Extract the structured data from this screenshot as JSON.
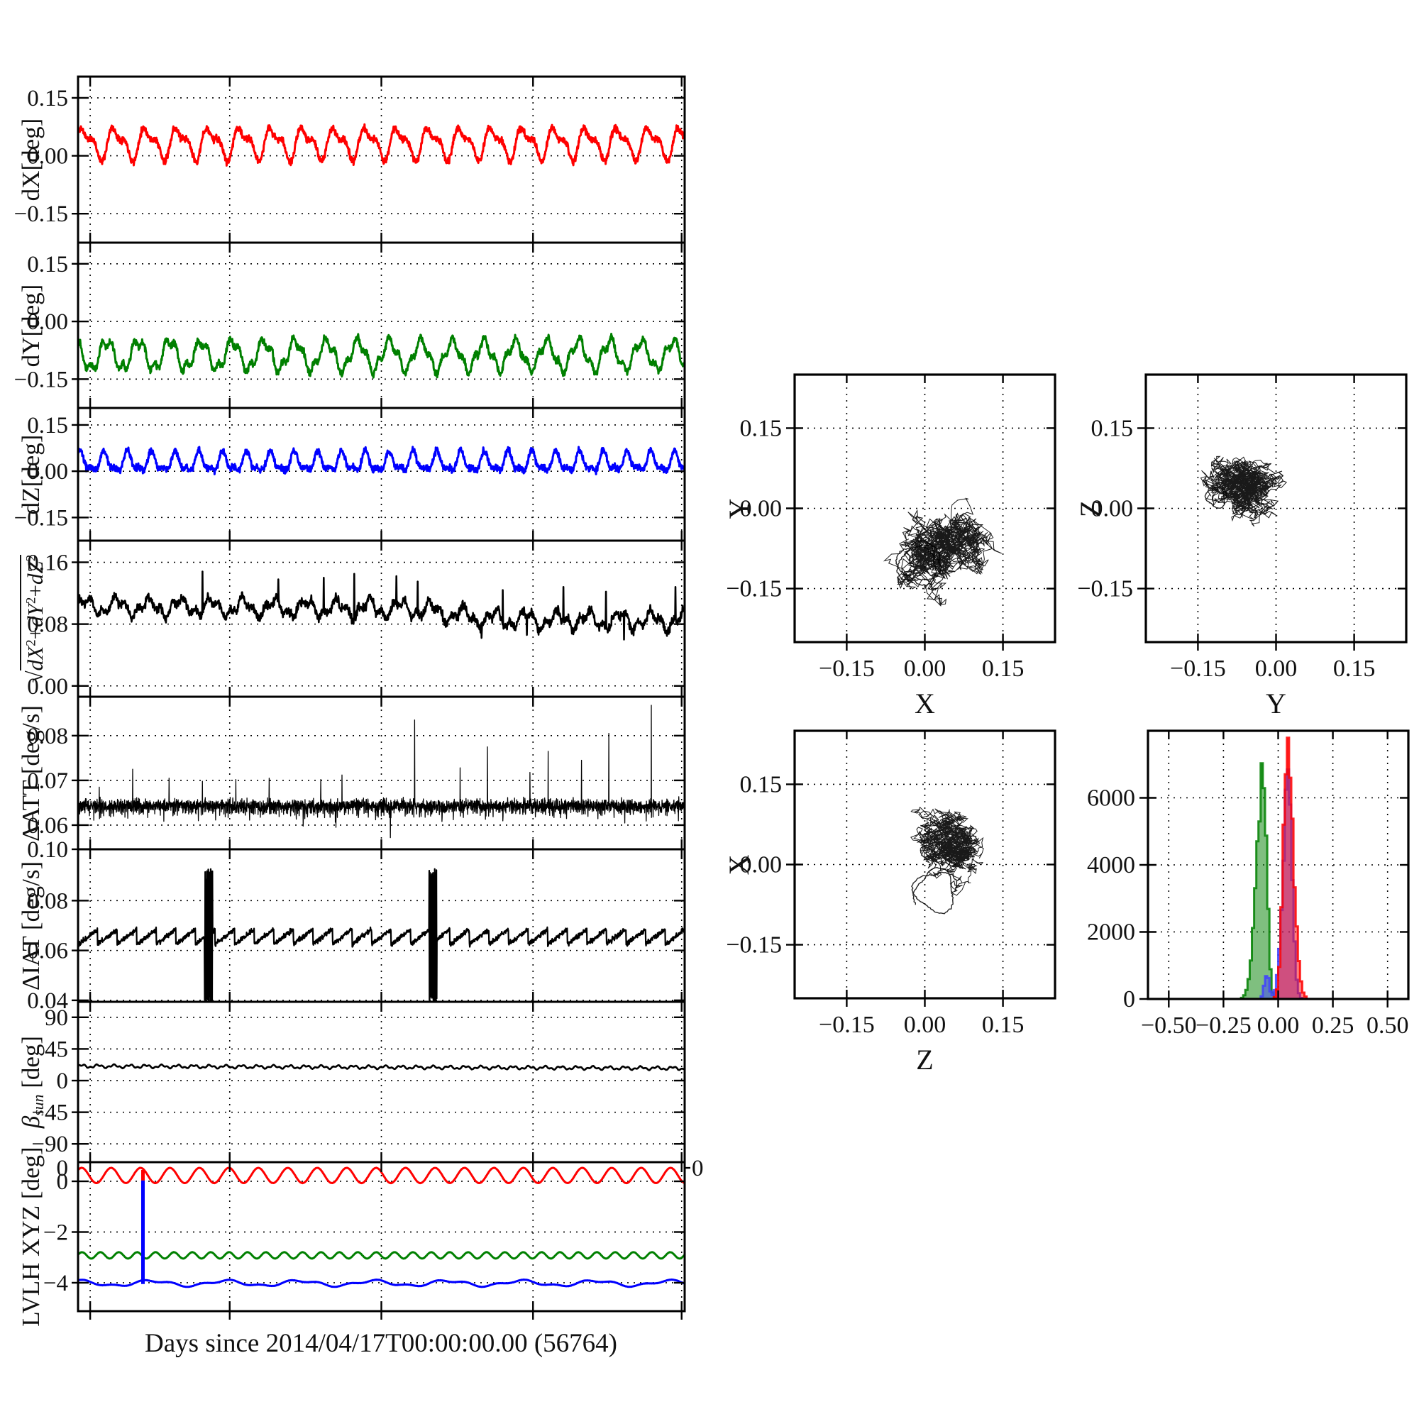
{
  "figure": {
    "background": "#ffffff",
    "frame_color": "#000000",
    "x_axis": {
      "label": "Days since 2014/04/17T00:00:00.00 (56764)",
      "range_days": [
        0,
        20.4
      ],
      "gridline_days": [
        0,
        5,
        10,
        15,
        20
      ]
    }
  },
  "colors": {
    "red": "#ff0000",
    "green": "#008000",
    "blue": "#0000ff",
    "black": "#000000",
    "hist_red": "#ff0000",
    "hist_green": "#008000",
    "hist_blue": "#4040ff"
  },
  "chart_data": [
    {
      "id": "dX",
      "type": "line",
      "ylabel": "dX[deg]",
      "ylabel_runs": [
        {
          "t": "dX[deg]"
        }
      ],
      "yticks": [
        {
          "label": "0.15",
          "value": 0.15
        },
        {
          "label": "0.00",
          "value": 0.0
        },
        {
          "label": "−0.15",
          "value": -0.15
        }
      ],
      "ylim": [
        -0.225,
        0.205
      ],
      "grid": true,
      "series": [
        {
          "name": "dX",
          "color": "#ff0000",
          "gen": "osc",
          "mean": 0.033,
          "amp": 0.034,
          "cycles": 19.3,
          "amp2": 0.017,
          "cycles2": 38.6,
          "phase": 0.3,
          "phase2": 1.2,
          "noise": 0.0075,
          "seed": 11,
          "width": 3
        }
      ]
    },
    {
      "id": "dY",
      "type": "line",
      "ylabel": "dY[deg]",
      "ylabel_runs": [
        {
          "t": "dY[deg]"
        }
      ],
      "yticks": [
        {
          "label": "0.15",
          "value": 0.15
        },
        {
          "label": "0.00",
          "value": 0.0
        },
        {
          "label": "−0.15",
          "value": -0.15
        }
      ],
      "ylim": [
        -0.225,
        0.205
      ],
      "grid": true,
      "series": [
        {
          "name": "dY",
          "color": "#008000",
          "gen": "osc",
          "mean": -0.088,
          "amp": 0.036,
          "cycles": 19.3,
          "amp2": 0.013,
          "cycles2": 57,
          "phase": 2.1,
          "phase2": 0.4,
          "noise": 0.0075,
          "seed": 22,
          "width": 3
        }
      ]
    },
    {
      "id": "dZ",
      "type": "line",
      "ylabel": "dZ[deg]",
      "ylabel_runs": [
        {
          "t": "dZ[deg]"
        }
      ],
      "yticks": [
        {
          "label": "0.15",
          "value": 0.15
        },
        {
          "label": "0.00",
          "value": 0.0
        },
        {
          "label": "−0.15",
          "value": -0.15
        }
      ],
      "ylim": [
        -0.225,
        0.205
      ],
      "grid": true,
      "series": [
        {
          "name": "dZ",
          "color": "#0000ff",
          "gen": "osc",
          "mean": 0.027,
          "amp": 0.028,
          "cycles": 25.5,
          "amp2": 0.013,
          "cycles2": 51,
          "phase": 1.0,
          "phase2": 0.7,
          "noise": 0.009,
          "seed": 33,
          "width": 3
        }
      ]
    },
    {
      "id": "rss",
      "type": "line",
      "ylabel": "sqrt(dX^2+dY^2+dZ^2)",
      "ylabel_runs": [
        {
          "t": "√"
        },
        {
          "t": "dX",
          "i": true,
          "ov": true
        },
        {
          "t": "2",
          "sup": true,
          "ov": true
        },
        {
          "t": "+",
          "ov": true
        },
        {
          "t": "dY",
          "i": true,
          "ov": true
        },
        {
          "t": "2",
          "sup": true,
          "ov": true
        },
        {
          "t": "+",
          "ov": true
        },
        {
          "t": "dZ",
          "i": true,
          "ov": true
        },
        {
          "t": "2",
          "sup": true,
          "ov": true
        }
      ],
      "yticks": [
        {
          "label": "0.16",
          "value": 0.16
        },
        {
          "label": "0.08",
          "value": 0.08
        },
        {
          "label": "0.00",
          "value": 0.0
        }
      ],
      "ylim": [
        -0.014,
        0.188
      ],
      "grid": true,
      "series": [
        {
          "name": "rss",
          "color": "#000000",
          "gen": "trend",
          "trend": [
            [
              0,
              0.103
            ],
            [
              0.55,
              0.1
            ],
            [
              0.68,
              0.086
            ],
            [
              1,
              0.084
            ]
          ],
          "amp": 0.009,
          "cycles": 19.3,
          "noise": 0.005,
          "width": 2.6,
          "seed": 44,
          "spikes": [
            {
              "f": 0.205,
              "v": 0.148
            },
            {
              "f": 0.33,
              "v": 0.138
            },
            {
              "f": 0.405,
              "v": 0.14
            },
            {
              "f": 0.455,
              "v": 0.145
            },
            {
              "f": 0.525,
              "v": 0.142
            },
            {
              "f": 0.56,
              "v": 0.135
            },
            {
              "f": 0.7,
              "v": 0.124
            },
            {
              "f": 0.8,
              "v": 0.128
            },
            {
              "f": 0.87,
              "v": 0.122
            },
            {
              "f": 0.985,
              "v": 0.128
            }
          ],
          "dips": [
            {
              "f": 0.665,
              "v": 0.062
            },
            {
              "f": 0.74,
              "v": 0.066
            },
            {
              "f": 0.9,
              "v": 0.06
            }
          ]
        }
      ]
    },
    {
      "id": "dATT",
      "type": "line",
      "ylabel": "ΔATT [deg/s]",
      "ylabel_runs": [
        {
          "t": "ΔATT [deg/s]"
        }
      ],
      "yticks": [
        {
          "label": "0.08",
          "value": 0.08
        },
        {
          "label": "0.07",
          "value": 0.07
        },
        {
          "label": "0.06",
          "value": 0.06
        }
      ],
      "ylim": [
        0.0546,
        0.0887
      ],
      "grid": true,
      "series": [
        {
          "name": "dATT",
          "color": "#000000",
          "gen": "flat_spikes",
          "mean": 0.0645,
          "noise": 0.0011,
          "n": 3000,
          "width": 1.3,
          "seed": 55,
          "spikes": [
            {
              "f": 0.035,
              "v": 0.0685
            },
            {
              "f": 0.09,
              "v": 0.0725
            },
            {
              "f": 0.15,
              "v": 0.0705
            },
            {
              "f": 0.205,
              "v": 0.0698
            },
            {
              "f": 0.26,
              "v": 0.0702
            },
            {
              "f": 0.315,
              "v": 0.0705
            },
            {
              "f": 0.4,
              "v": 0.0702
            },
            {
              "f": 0.435,
              "v": 0.0712
            },
            {
              "f": 0.555,
              "v": 0.0835
            },
            {
              "f": 0.63,
              "v": 0.0728
            },
            {
              "f": 0.675,
              "v": 0.0775
            },
            {
              "f": 0.745,
              "v": 0.0718
            },
            {
              "f": 0.775,
              "v": 0.0765
            },
            {
              "f": 0.83,
              "v": 0.0745
            },
            {
              "f": 0.875,
              "v": 0.0805
            },
            {
              "f": 0.945,
              "v": 0.0868
            }
          ],
          "dips": [
            {
              "f": 0.425,
              "v": 0.0595
            },
            {
              "f": 0.515,
              "v": 0.0572
            },
            {
              "f": 0.6,
              "v": 0.0608
            }
          ]
        }
      ]
    },
    {
      "id": "dIAT",
      "type": "line",
      "ylabel": "ΔIAT [deg/s]",
      "ylabel_runs": [
        {
          "t": "ΔIAT [deg/s]"
        }
      ],
      "yticks": [
        {
          "label": "0.10",
          "value": 0.1006
        },
        {
          "label": "0.08",
          "value": 0.08
        },
        {
          "label": "0.06",
          "value": 0.06
        },
        {
          "label": "0.04",
          "value": 0.04
        }
      ],
      "ylim": [
        0.0394,
        0.1006
      ],
      "grid": true,
      "series": [
        {
          "name": "dIAT",
          "color": "#000000",
          "gen": "saw_burst",
          "lo": 0.0625,
          "hi": 0.0685,
          "teeth": 31,
          "noise": 0.0008,
          "width": 2.2,
          "seed": 66,
          "bursts": [
            {
              "f": 0.215,
              "w": 0.013,
              "lo": 0.0405,
              "hi": 0.0905
            },
            {
              "f": 0.585,
              "w": 0.013,
              "lo": 0.0405,
              "hi": 0.0905
            }
          ]
        }
      ]
    },
    {
      "id": "beta_sun",
      "type": "line",
      "ylabel": "beta_sun [deg]",
      "ylabel_runs": [
        {
          "t": "β",
          "i": true
        },
        {
          "t": "sun",
          "sub": true
        },
        {
          "t": " [deg]"
        }
      ],
      "yticks": [
        {
          "label": "90",
          "value": 90
        },
        {
          "label": "45",
          "value": 45
        },
        {
          "label": "0",
          "value": 0
        },
        {
          "label": "−45",
          "value": -45
        },
        {
          "label": "−90",
          "value": -90
        }
      ],
      "ylim": [
        -116,
        112
      ],
      "grid": true,
      "series": [
        {
          "name": "beta",
          "color": "#000000",
          "gen": "trend",
          "trend": [
            [
              0,
              20.5
            ],
            [
              1,
              17.5
            ]
          ],
          "amp": 1.8,
          "cycles": 38,
          "noise": 0.18,
          "width": 2.6,
          "seed": 77,
          "spikes": [],
          "dips": []
        }
      ]
    },
    {
      "id": "lvlh",
      "type": "line",
      "ylabel": "LVLH XYZ [deg]",
      "ylabel_runs": [
        {
          "t": "LVLH XYZ [deg]"
        }
      ],
      "yticks": [
        {
          "label": "0",
          "value": 0
        },
        {
          "label": "−2",
          "value": -2
        },
        {
          "label": "−4",
          "value": -4
        }
      ],
      "ylim": [
        -5.12,
        0.755
      ],
      "grid": true,
      "twin_zero": {
        "label_left": "0",
        "label_right": "0",
        "value": 0.53
      },
      "series": [
        {
          "name": "X",
          "color": "#ff0000",
          "gen": "osc",
          "mean": 0.23,
          "amp": 0.3,
          "cycles": 20.6,
          "amp2": 0,
          "cycles2": 1,
          "phase": 0.8,
          "phase2": 0,
          "noise": 0.004,
          "seed": 88,
          "width": 3
        },
        {
          "name": "Y",
          "color": "#008000",
          "gen": "osc",
          "mean": -2.92,
          "amp": 0.125,
          "cycles": 33,
          "amp2": 0,
          "cycles2": 1,
          "phase": 0.2,
          "phase2": 0,
          "noise": 0.004,
          "seed": 89,
          "width": 3
        },
        {
          "name": "Z",
          "color": "#0000ff",
          "gen": "osc",
          "mean": -4.02,
          "amp": 0.1,
          "cycles": 8.2,
          "amp2": 0.045,
          "cycles2": 20.6,
          "phase": 1.6,
          "phase2": 0.4,
          "noise": 0.004,
          "seed": 90,
          "width": 3
        }
      ],
      "spike_event": {
        "f": 0.107,
        "red_from": 0.45,
        "red_to": 0.03,
        "blue_from": 0.03,
        "blue_to": -4.05
      }
    },
    {
      "id": "scatter_Y_vs_X",
      "type": "scatter",
      "xlabel": "X",
      "ylabel": "Y",
      "xticks": [
        {
          "label": "−0.15",
          "value": -0.15
        },
        {
          "label": "0.00",
          "value": 0.0
        },
        {
          "label": "0.15",
          "value": 0.15
        }
      ],
      "yticks": [
        {
          "label": "0.15",
          "value": 0.15
        },
        {
          "label": "0.00",
          "value": 0.0
        },
        {
          "label": "−0.15",
          "value": -0.15
        }
      ],
      "xlim": [
        -0.25,
        0.25
      ],
      "ylim": [
        -0.25,
        0.25
      ],
      "cluster": {
        "cx": 0.035,
        "cy": -0.075,
        "sx": 0.04,
        "sy": 0.031,
        "n": 1700,
        "seed": 101
      },
      "loop": {
        "cx": -0.012,
        "cy": -0.103,
        "r": 0.037,
        "turns": 2.2,
        "seed": 102
      }
    },
    {
      "id": "scatter_Z_vs_Y",
      "type": "scatter",
      "xlabel": "Y",
      "ylabel": "Z",
      "xticks": [
        {
          "label": "−0.15",
          "value": -0.15
        },
        {
          "label": "0.00",
          "value": 0.0
        },
        {
          "label": "0.15",
          "value": 0.15
        }
      ],
      "yticks": [
        {
          "label": "0.15",
          "value": 0.15
        },
        {
          "label": "0.00",
          "value": 0.0
        },
        {
          "label": "−0.15",
          "value": -0.15
        }
      ],
      "xlim": [
        -0.25,
        0.25
      ],
      "ylim": [
        -0.25,
        0.25
      ],
      "cluster": {
        "cx": -0.063,
        "cy": 0.042,
        "sx": 0.03,
        "sy": 0.024,
        "n": 1700,
        "seed": 103
      },
      "loop": {
        "cx": -0.115,
        "cy": 0.02,
        "r": 0.018,
        "turns": 1.3,
        "seed": 104
      }
    },
    {
      "id": "scatter_X_vs_Z",
      "type": "scatter",
      "xlabel": "Z",
      "ylabel": "X",
      "xticks": [
        {
          "label": "−0.15",
          "value": -0.15
        },
        {
          "label": "0.00",
          "value": 0.0
        },
        {
          "label": "0.15",
          "value": 0.15
        }
      ],
      "yticks": [
        {
          "label": "0.15",
          "value": 0.15
        },
        {
          "label": "0.00",
          "value": 0.0
        },
        {
          "label": "−0.15",
          "value": -0.15
        }
      ],
      "xlim": [
        -0.25,
        0.25
      ],
      "ylim": [
        -0.25,
        0.25
      ],
      "cluster": {
        "cx": 0.048,
        "cy": 0.038,
        "sx": 0.027,
        "sy": 0.027,
        "n": 1600,
        "seed": 105
      },
      "loop": {
        "cx": 0.02,
        "cy": -0.05,
        "r": 0.038,
        "turns": 1.6,
        "seed": 106
      }
    },
    {
      "id": "histogram",
      "type": "hist",
      "xticks": [
        {
          "label": "−0.50",
          "value": -0.5
        },
        {
          "label": "−0.25",
          "value": -0.25
        },
        {
          "label": "0.00",
          "value": 0.0
        },
        {
          "label": "0.25",
          "value": 0.25
        },
        {
          "label": "0.50",
          "value": 0.5
        }
      ],
      "yticks": [
        {
          "label": "0",
          "value": 0
        },
        {
          "label": "2000",
          "value": 2000
        },
        {
          "label": "4000",
          "value": 4000
        },
        {
          "label": "6000",
          "value": 6000
        }
      ],
      "xlim": [
        -0.595,
        0.595
      ],
      "ylim": [
        0,
        8000
      ],
      "bin_width": 0.01,
      "series": [
        {
          "name": "dY",
          "color": "#008000",
          "center": -0.068,
          "sigmaL": 0.03,
          "sigmaR": 0.016,
          "peak": 7050,
          "seed": 201
        },
        {
          "name": "dZ",
          "color": "#4040ff",
          "center": 0.046,
          "sigmaL": 0.024,
          "sigmaR": 0.018,
          "peak": 6500,
          "seed": 202,
          "shoulder": {
            "center": -0.052,
            "sigma": 0.011,
            "peak": 700
          }
        },
        {
          "name": "dX",
          "color": "#ff0000",
          "center": 0.041,
          "sigmaL": 0.018,
          "sigmaR": 0.028,
          "peak": 7280,
          "seed": 203
        }
      ]
    }
  ]
}
